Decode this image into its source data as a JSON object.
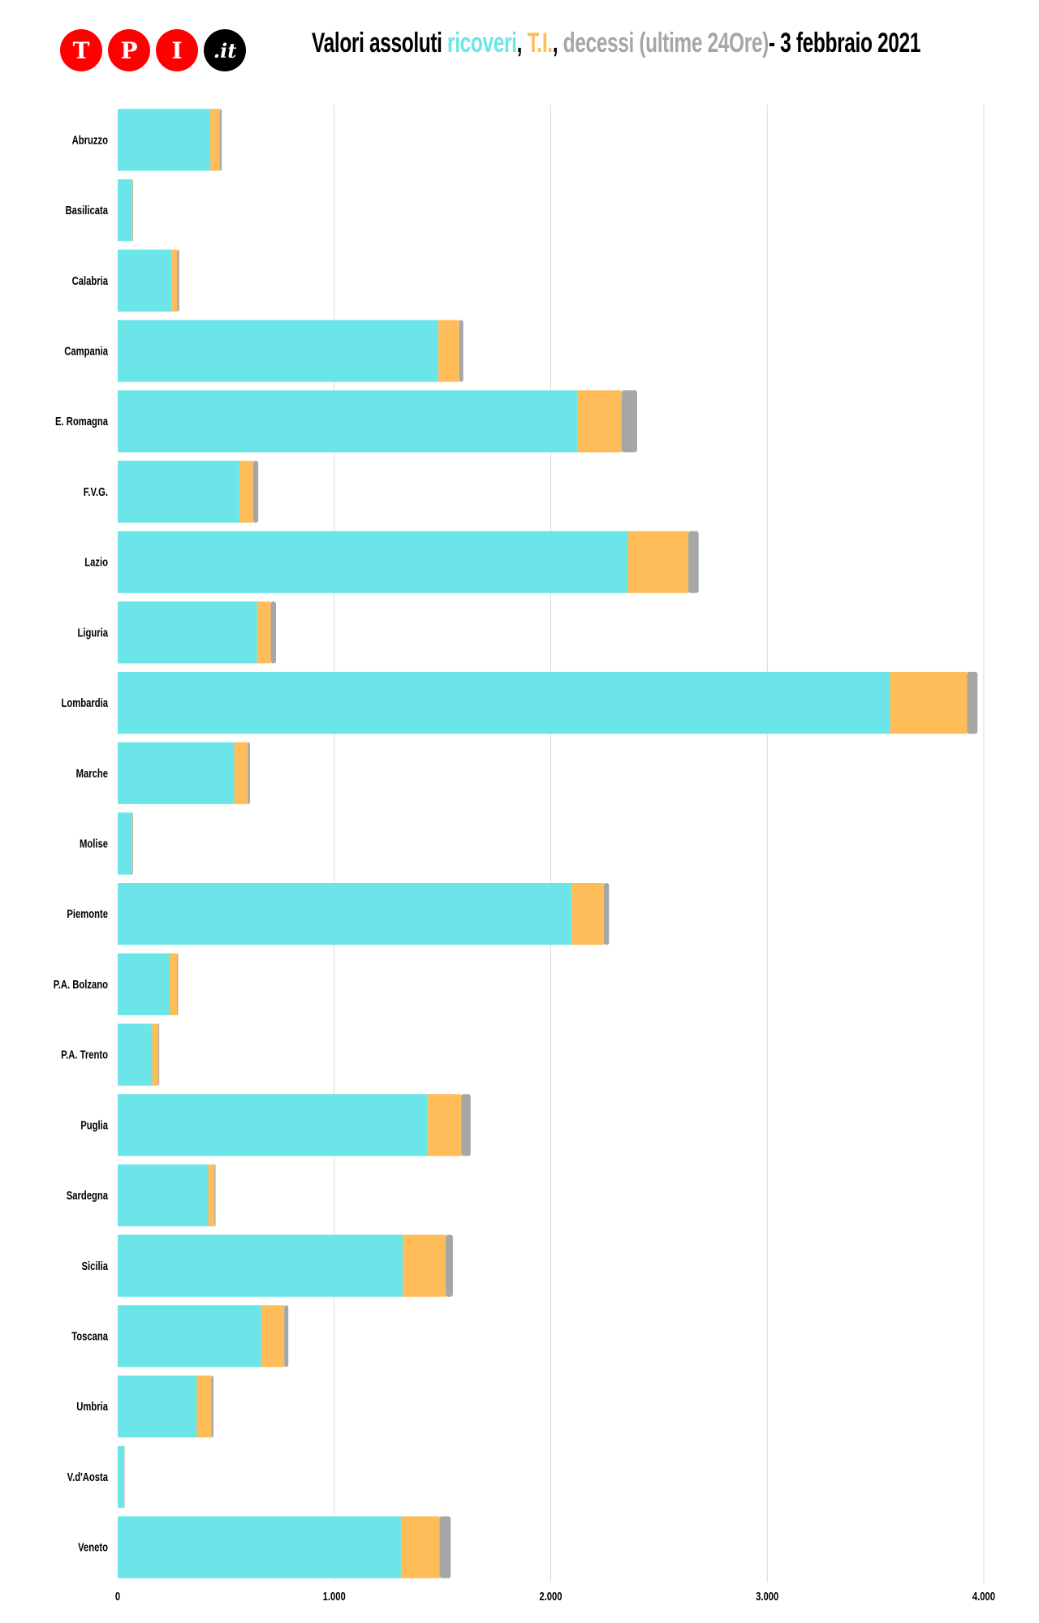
{
  "logo_text": "TPI.it",
  "logo_letters": [
    "T",
    "P",
    "I",
    ".it"
  ],
  "title": {
    "prefix": "Valori assoluti ",
    "s1": "ricoveri",
    "sep1": ", ",
    "s2": "T.I.",
    "sep2": ", ",
    "s3": "decessi (ultime 24Ore)",
    "suffix": "- 3 febbraio 2021"
  },
  "chart_data": {
    "type": "bar",
    "orientation": "horizontal",
    "stacked": true,
    "title": "Valori assoluti ricoveri, T.I., decessi (ultime 24Ore)- 3 febbraio 2021",
    "categories": [
      "Abruzzo",
      "Basilicata",
      "Calabria",
      "Campania",
      "E. Romagna",
      "F.V.G.",
      "Lazio",
      "Liguria",
      "Lombardia",
      "Marche",
      "Molise",
      "Piemonte",
      "P.A. Bolzano",
      "P.A. Trento",
      "Puglia",
      "Sardegna",
      "Sicilia",
      "Toscana",
      "Umbria",
      "V.d'Aosta",
      "Veneto"
    ],
    "series": [
      {
        "name": "ricoveri",
        "color": "#6ce5e8",
        "values": [
          428,
          67,
          250,
          1481,
          2125,
          562,
          2356,
          644,
          3567,
          538,
          67,
          2096,
          240,
          159,
          1433,
          418,
          1317,
          663,
          365,
          29,
          1308
        ]
      },
      {
        "name": "T.I.",
        "color": "#ffbd59",
        "values": [
          43,
          2,
          24,
          96,
          202,
          63,
          279,
          63,
          356,
          63,
          2,
          149,
          34,
          29,
          154,
          29,
          197,
          106,
          68,
          1,
          178
        ]
      },
      {
        "name": "decessi",
        "color": "#a6a6a6",
        "values": [
          9,
          1,
          10,
          19,
          72,
          24,
          48,
          24,
          48,
          10,
          1,
          24,
          5,
          4,
          43,
          5,
          34,
          19,
          9,
          1,
          52
        ]
      }
    ],
    "xlim": [
      0,
      4000
    ],
    "xticks": [
      0,
      1000,
      2000,
      3000,
      4000
    ],
    "xtick_labels": [
      "0",
      "1.000",
      "2.000",
      "3.000",
      "4.000"
    ],
    "grid": true,
    "legend": "in title"
  }
}
